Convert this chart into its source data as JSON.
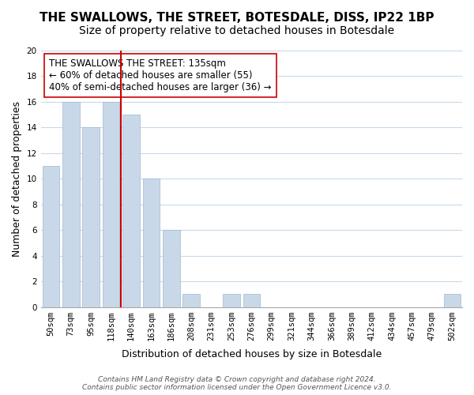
{
  "title": "THE SWALLOWS, THE STREET, BOTESDALE, DISS, IP22 1BP",
  "subtitle": "Size of property relative to detached houses in Botesdale",
  "xlabel": "Distribution of detached houses by size in Botesdale",
  "ylabel": "Number of detached properties",
  "bin_labels": [
    "50sqm",
    "73sqm",
    "95sqm",
    "118sqm",
    "140sqm",
    "163sqm",
    "186sqm",
    "208sqm",
    "231sqm",
    "253sqm",
    "276sqm",
    "299sqm",
    "321sqm",
    "344sqm",
    "366sqm",
    "389sqm",
    "412sqm",
    "434sqm",
    "457sqm",
    "479sqm",
    "502sqm"
  ],
  "bar_values": [
    11,
    16,
    14,
    16,
    15,
    10,
    6,
    1,
    0,
    1,
    1,
    0,
    0,
    0,
    0,
    0,
    0,
    0,
    0,
    0,
    1
  ],
  "bar_color": "#c8d8e8",
  "bar_edge_color": "#a0b8d0",
  "property_line_x": 3.5,
  "property_line_color": "#cc0000",
  "annotation_title": "THE SWALLOWS THE STREET: 135sqm",
  "annotation_line1": "← 60% of detached houses are smaller (55)",
  "annotation_line2": "40% of semi-detached houses are larger (36) →",
  "ylim": [
    0,
    20
  ],
  "yticks": [
    0,
    2,
    4,
    6,
    8,
    10,
    12,
    14,
    16,
    18,
    20
  ],
  "footer_line1": "Contains HM Land Registry data © Crown copyright and database right 2024.",
  "footer_line2": "Contains public sector information licensed under the Open Government Licence v3.0.",
  "background_color": "#ffffff",
  "grid_color": "#c8daea",
  "title_fontsize": 11,
  "subtitle_fontsize": 10,
  "axis_label_fontsize": 9,
  "tick_fontsize": 7.5,
  "annotation_fontsize": 8.5,
  "footer_fontsize": 6.5
}
